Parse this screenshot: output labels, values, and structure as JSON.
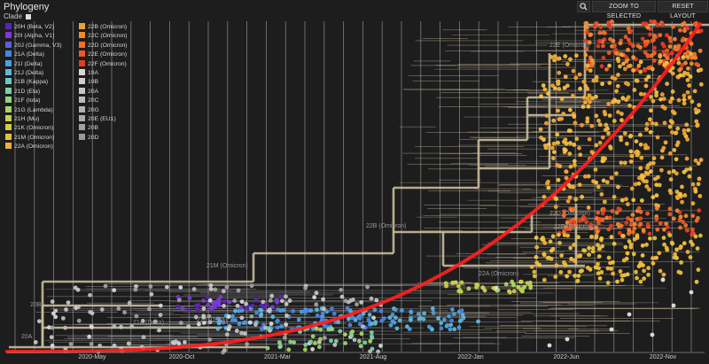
{
  "panel": {
    "title": "Phylogeny",
    "color_by_label": "Clade"
  },
  "toolbar": {
    "zoom_selected": "ZOOM TO SELECTED",
    "reset_layout": "RESET LAYOUT",
    "search_icon": "search-icon"
  },
  "legend": {
    "col1": [
      {
        "label": "20H (Beta, V2)",
        "color": "#5d23b6"
      },
      {
        "label": "20I (Alpha, V1)",
        "color": "#7a3bd4"
      },
      {
        "label": "20J (Gamma, V3)",
        "color": "#5b5fd6"
      },
      {
        "label": "21A (Delta)",
        "color": "#4a84e0"
      },
      {
        "label": "21I (Delta)",
        "color": "#4c9fe0"
      },
      {
        "label": "21J (Delta)",
        "color": "#5fb7d9"
      },
      {
        "label": "21B (Kappa)",
        "color": "#6ec6c1"
      },
      {
        "label": "21D (Eta)",
        "color": "#7fcf9f"
      },
      {
        "label": "21F (Iota)",
        "color": "#93d37e"
      },
      {
        "label": "21G (Lambda)",
        "color": "#a9d463"
      },
      {
        "label": "21H (Mu)",
        "color": "#c0d24f"
      },
      {
        "label": "21K (Omicron)",
        "color": "#d4cc43"
      },
      {
        "label": "21M (Omicron)",
        "color": "#e3c13d"
      },
      {
        "label": "22A (Omicron)",
        "color": "#ecb13a"
      }
    ],
    "col2": [
      {
        "label": "22B (Omicron)",
        "color": "#f0a036"
      },
      {
        "label": "22C (Omicron)",
        "color": "#f18b31"
      },
      {
        "label": "22D (Omicron)",
        "color": "#ef722c"
      },
      {
        "label": "22E (Omicron)",
        "color": "#eb5828"
      },
      {
        "label": "22F (Omicron)",
        "color": "#e43b24"
      },
      {
        "label": "19A",
        "color": "#d8d8d8"
      },
      {
        "label": "19B",
        "color": "#cfcfcf"
      },
      {
        "label": "20A",
        "color": "#c6c6c6"
      },
      {
        "label": "20C",
        "color": "#bcbcbc"
      },
      {
        "label": "20G",
        "color": "#b3b3b3"
      },
      {
        "label": "20E (EU1)",
        "color": "#aaaaaa"
      },
      {
        "label": "20B",
        "color": "#a1a1a1"
      },
      {
        "label": "20D",
        "color": "#989898"
      }
    ]
  },
  "axis": {
    "ticks": [
      "2020-May",
      "2020-Oct",
      "2021-Mar",
      "2021-Aug",
      "2022-Jan",
      "2022-Jun",
      "2022-Nov"
    ]
  },
  "clade_labels": [
    "22E (Omicron)",
    "22B (Omicron)",
    "21M (Omicron)",
    "22A (Omicron)",
    "22D (Omicron)",
    "22F (Omicron)",
    "21A (Delta)",
    "21J (Delta)",
    "20B",
    "20A"
  ],
  "colors": {
    "background": "#1d1d1d",
    "branch": "#c9bc9c",
    "trend": "#ff1f1f",
    "grid": "#e8e8e8"
  }
}
